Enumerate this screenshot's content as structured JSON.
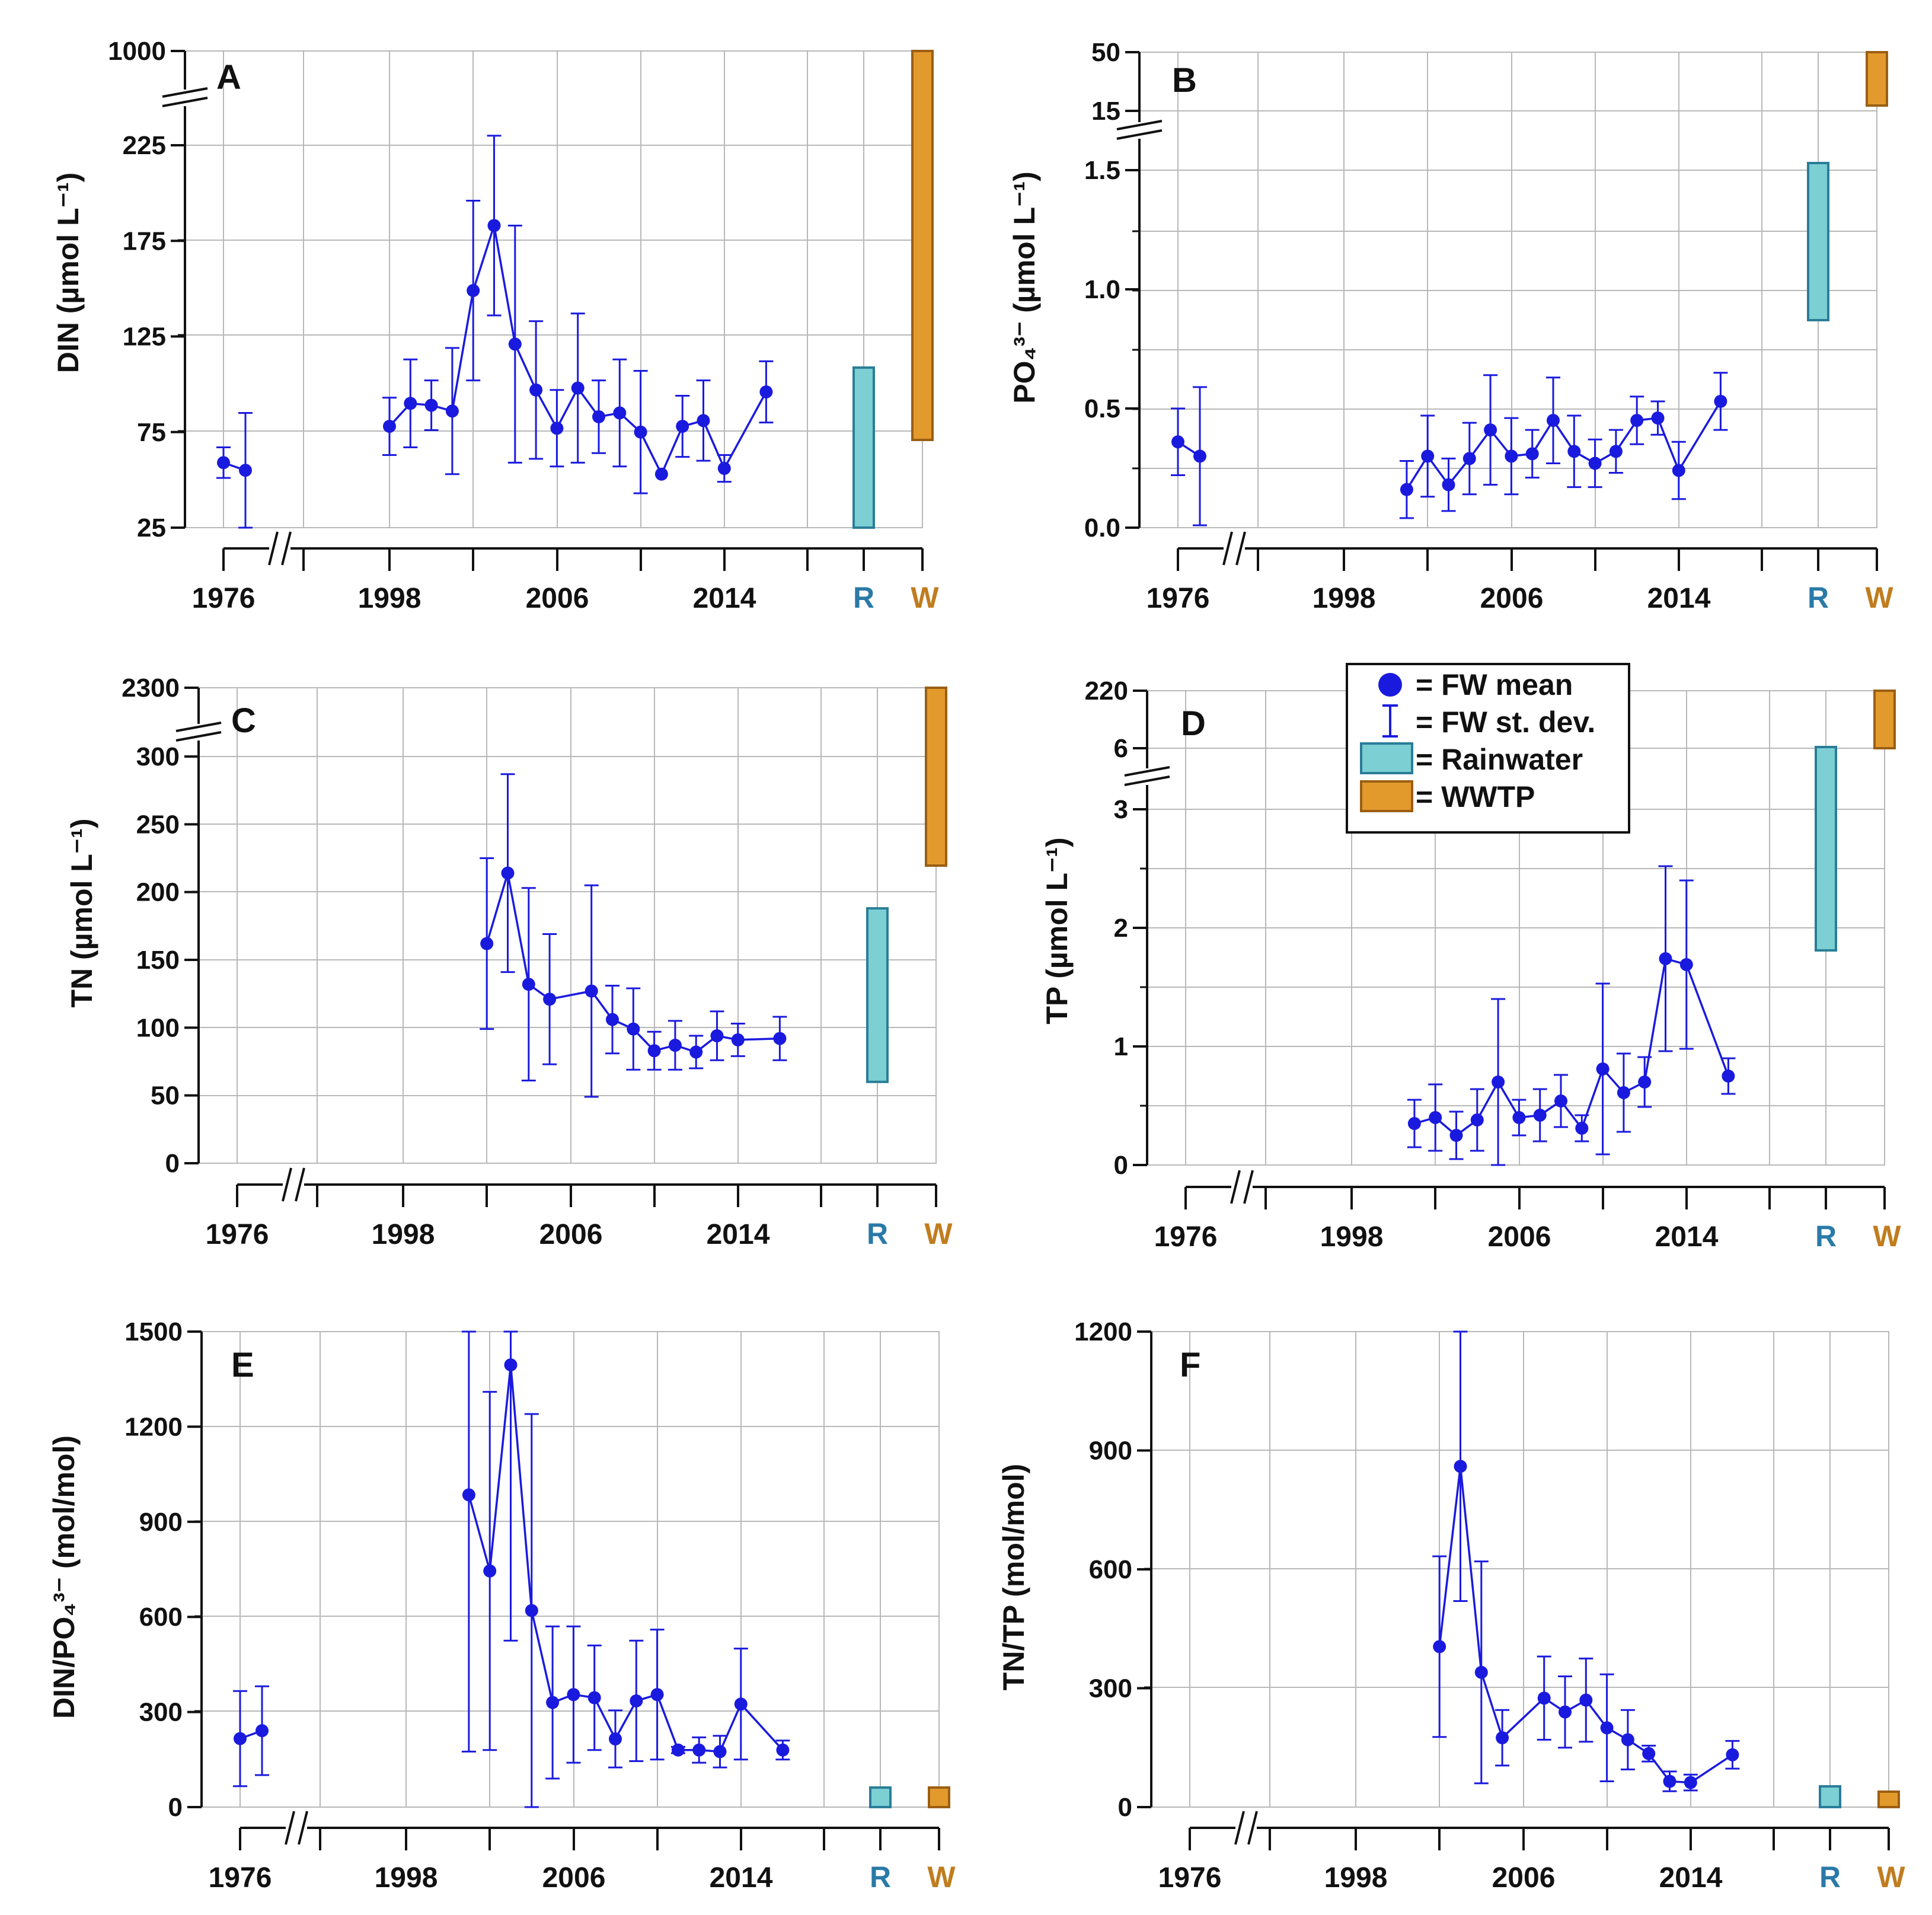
{
  "colors": {
    "series": "#1a1adf",
    "rainwater_fill": "#7ccfd2",
    "rainwater_stroke": "#2a7d98",
    "wwtp_fill": "#e39a2c",
    "wwtp_stroke": "#9a5f14",
    "r_label": "#2a7aa8",
    "w_label": "#c07c1e",
    "grid": "#b8b8b8"
  },
  "legend": {
    "mean": "= FW mean",
    "sd": "= FW st. dev.",
    "rain": "= Rainwater",
    "wwtp": "= WWTP"
  },
  "x_ticks": [
    "1976",
    "1998",
    "2006",
    "2014"
  ],
  "r_label": "R",
  "w_label": "W",
  "chart_data": [
    {
      "panel": "A",
      "type": "line",
      "ylabel": "DIN (µmol L⁻¹)",
      "y_ticks": [
        "25",
        "75",
        "125",
        "175",
        "225"
      ],
      "y_break_tick": "1000",
      "ylim": [
        25,
        250
      ],
      "x": [
        1976,
        1977,
        1998,
        1999,
        2000,
        2001,
        2002,
        2003,
        2004,
        2005,
        2006,
        2007,
        2008,
        2009,
        2010,
        2011,
        2012,
        2013,
        2014,
        2016
      ],
      "y": [
        59,
        55,
        78,
        90,
        89,
        86,
        149,
        183,
        121,
        97,
        77,
        98,
        83,
        85,
        75,
        53,
        78,
        81,
        56,
        96
      ],
      "sd": [
        8,
        30,
        15,
        23,
        13,
        33,
        47,
        47,
        62,
        36,
        20,
        39,
        19,
        28,
        32,
        0,
        16,
        21,
        7,
        16
      ],
      "rainwater": [
        25,
        108
      ],
      "wwtp": [
        70,
        1000
      ],
      "wwtp_broken": true
    },
    {
      "panel": "B",
      "type": "line",
      "ylabel": "PO₄³⁻ (µmol L⁻¹)",
      "y_ticks": [
        "0.0",
        "0.5",
        "1.0",
        "1.5"
      ],
      "y_break_ticks": [
        "15",
        "50"
      ],
      "ylim": [
        0,
        1.6
      ],
      "x": [
        1976,
        1977,
        2001,
        2002,
        2003,
        2004,
        2005,
        2006,
        2007,
        2008,
        2009,
        2010,
        2011,
        2012,
        2013,
        2014,
        2016
      ],
      "y": [
        0.36,
        0.3,
        0.16,
        0.3,
        0.18,
        0.29,
        0.41,
        0.3,
        0.31,
        0.45,
        0.32,
        0.27,
        0.32,
        0.45,
        0.46,
        0.24,
        0.53
      ],
      "sd": [
        0.14,
        0.29,
        0.12,
        0.17,
        0.11,
        0.15,
        0.23,
        0.16,
        0.1,
        0.18,
        0.15,
        0.1,
        0.09,
        0.1,
        0.07,
        0.12,
        0.12
      ],
      "rainwater": [
        0.87,
        1.6
      ],
      "rainwater_broken": true,
      "wwtp": [
        15,
        50
      ]
    },
    {
      "panel": "C",
      "type": "line",
      "ylabel": "TN (µmol L⁻¹)",
      "y_ticks": [
        "0",
        "50",
        "100",
        "150",
        "200",
        "250",
        "300"
      ],
      "y_break_tick": "2300",
      "ylim": [
        0,
        330
      ],
      "x": [
        2002,
        2003,
        2004,
        2005,
        2007,
        2008,
        2009,
        2010,
        2011,
        2012,
        2013,
        2014,
        2016
      ],
      "y": [
        162,
        214,
        132,
        121,
        127,
        106,
        99,
        83,
        87,
        82,
        94,
        91,
        92
      ],
      "sd": [
        63,
        73,
        71,
        48,
        78,
        25,
        30,
        14,
        18,
        12,
        18,
        12,
        16
      ],
      "rainwater": [
        60,
        188
      ],
      "wwtp": [
        222,
        2300
      ],
      "wwtp_broken": true
    },
    {
      "panel": "D",
      "type": "line",
      "ylabel": "TP (µmol L⁻¹)",
      "y_ticks": [
        "0",
        "1",
        "2",
        "3"
      ],
      "y_break_ticks": [
        "6",
        "220"
      ],
      "ylim": [
        0,
        3.3
      ],
      "x": [
        2001,
        2002,
        2003,
        2004,
        2005,
        2006,
        2007,
        2008,
        2009,
        2010,
        2011,
        2012,
        2013,
        2014,
        2016
      ],
      "y": [
        0.35,
        0.4,
        0.25,
        0.38,
        0.7,
        0.4,
        0.42,
        0.54,
        0.31,
        0.81,
        0.61,
        0.7,
        1.74,
        1.69,
        0.75
      ],
      "sd": [
        0.2,
        0.28,
        0.2,
        0.26,
        0.7,
        0.15,
        0.22,
        0.22,
        0.11,
        0.72,
        0.33,
        0.21,
        0.78,
        0.71,
        0.15
      ],
      "rainwater": [
        1.82,
        6
      ],
      "rainwater_broken": true,
      "wwtp": [
        6,
        220
      ]
    },
    {
      "panel": "E",
      "type": "line",
      "ylabel": "DIN/PO₄³⁻ (mol/mol)",
      "y_ticks": [
        "0",
        "300",
        "600",
        "900",
        "1200",
        "1500"
      ],
      "ylim": [
        0,
        1500
      ],
      "x": [
        1976,
        1977,
        2001,
        2002,
        2003,
        2004,
        2005,
        2006,
        2007,
        2008,
        2009,
        2010,
        2011,
        2012,
        2013,
        2014,
        2016
      ],
      "y": [
        216,
        241,
        985,
        745,
        1395,
        620,
        330,
        355,
        345,
        215,
        335,
        355,
        180,
        180,
        175,
        325,
        180
      ],
      "sd": [
        150,
        140,
        810,
        565,
        870,
        620,
        240,
        215,
        165,
        90,
        190,
        205,
        10,
        40,
        50,
        175,
        30
      ],
      "rainwater": [
        0,
        50
      ],
      "wwtp": [
        0,
        50
      ]
    },
    {
      "panel": "F",
      "type": "line",
      "ylabel": "TN/TP (mol/mol)",
      "y_ticks": [
        "0",
        "300",
        "600",
        "900",
        "1200"
      ],
      "ylim": [
        0,
        1200
      ],
      "x": [
        2002,
        2003,
        2004,
        2005,
        2007,
        2008,
        2009,
        2010,
        2011,
        2012,
        2013,
        2014,
        2016
      ],
      "y": [
        405,
        860,
        340,
        175,
        275,
        240,
        270,
        200,
        170,
        135,
        65,
        62,
        132
      ],
      "sd": [
        228,
        340,
        280,
        70,
        105,
        90,
        105,
        135,
        75,
        20,
        25,
        20,
        35
      ],
      "rainwater": [
        0,
        50
      ],
      "wwtp": [
        0,
        35
      ]
    }
  ]
}
